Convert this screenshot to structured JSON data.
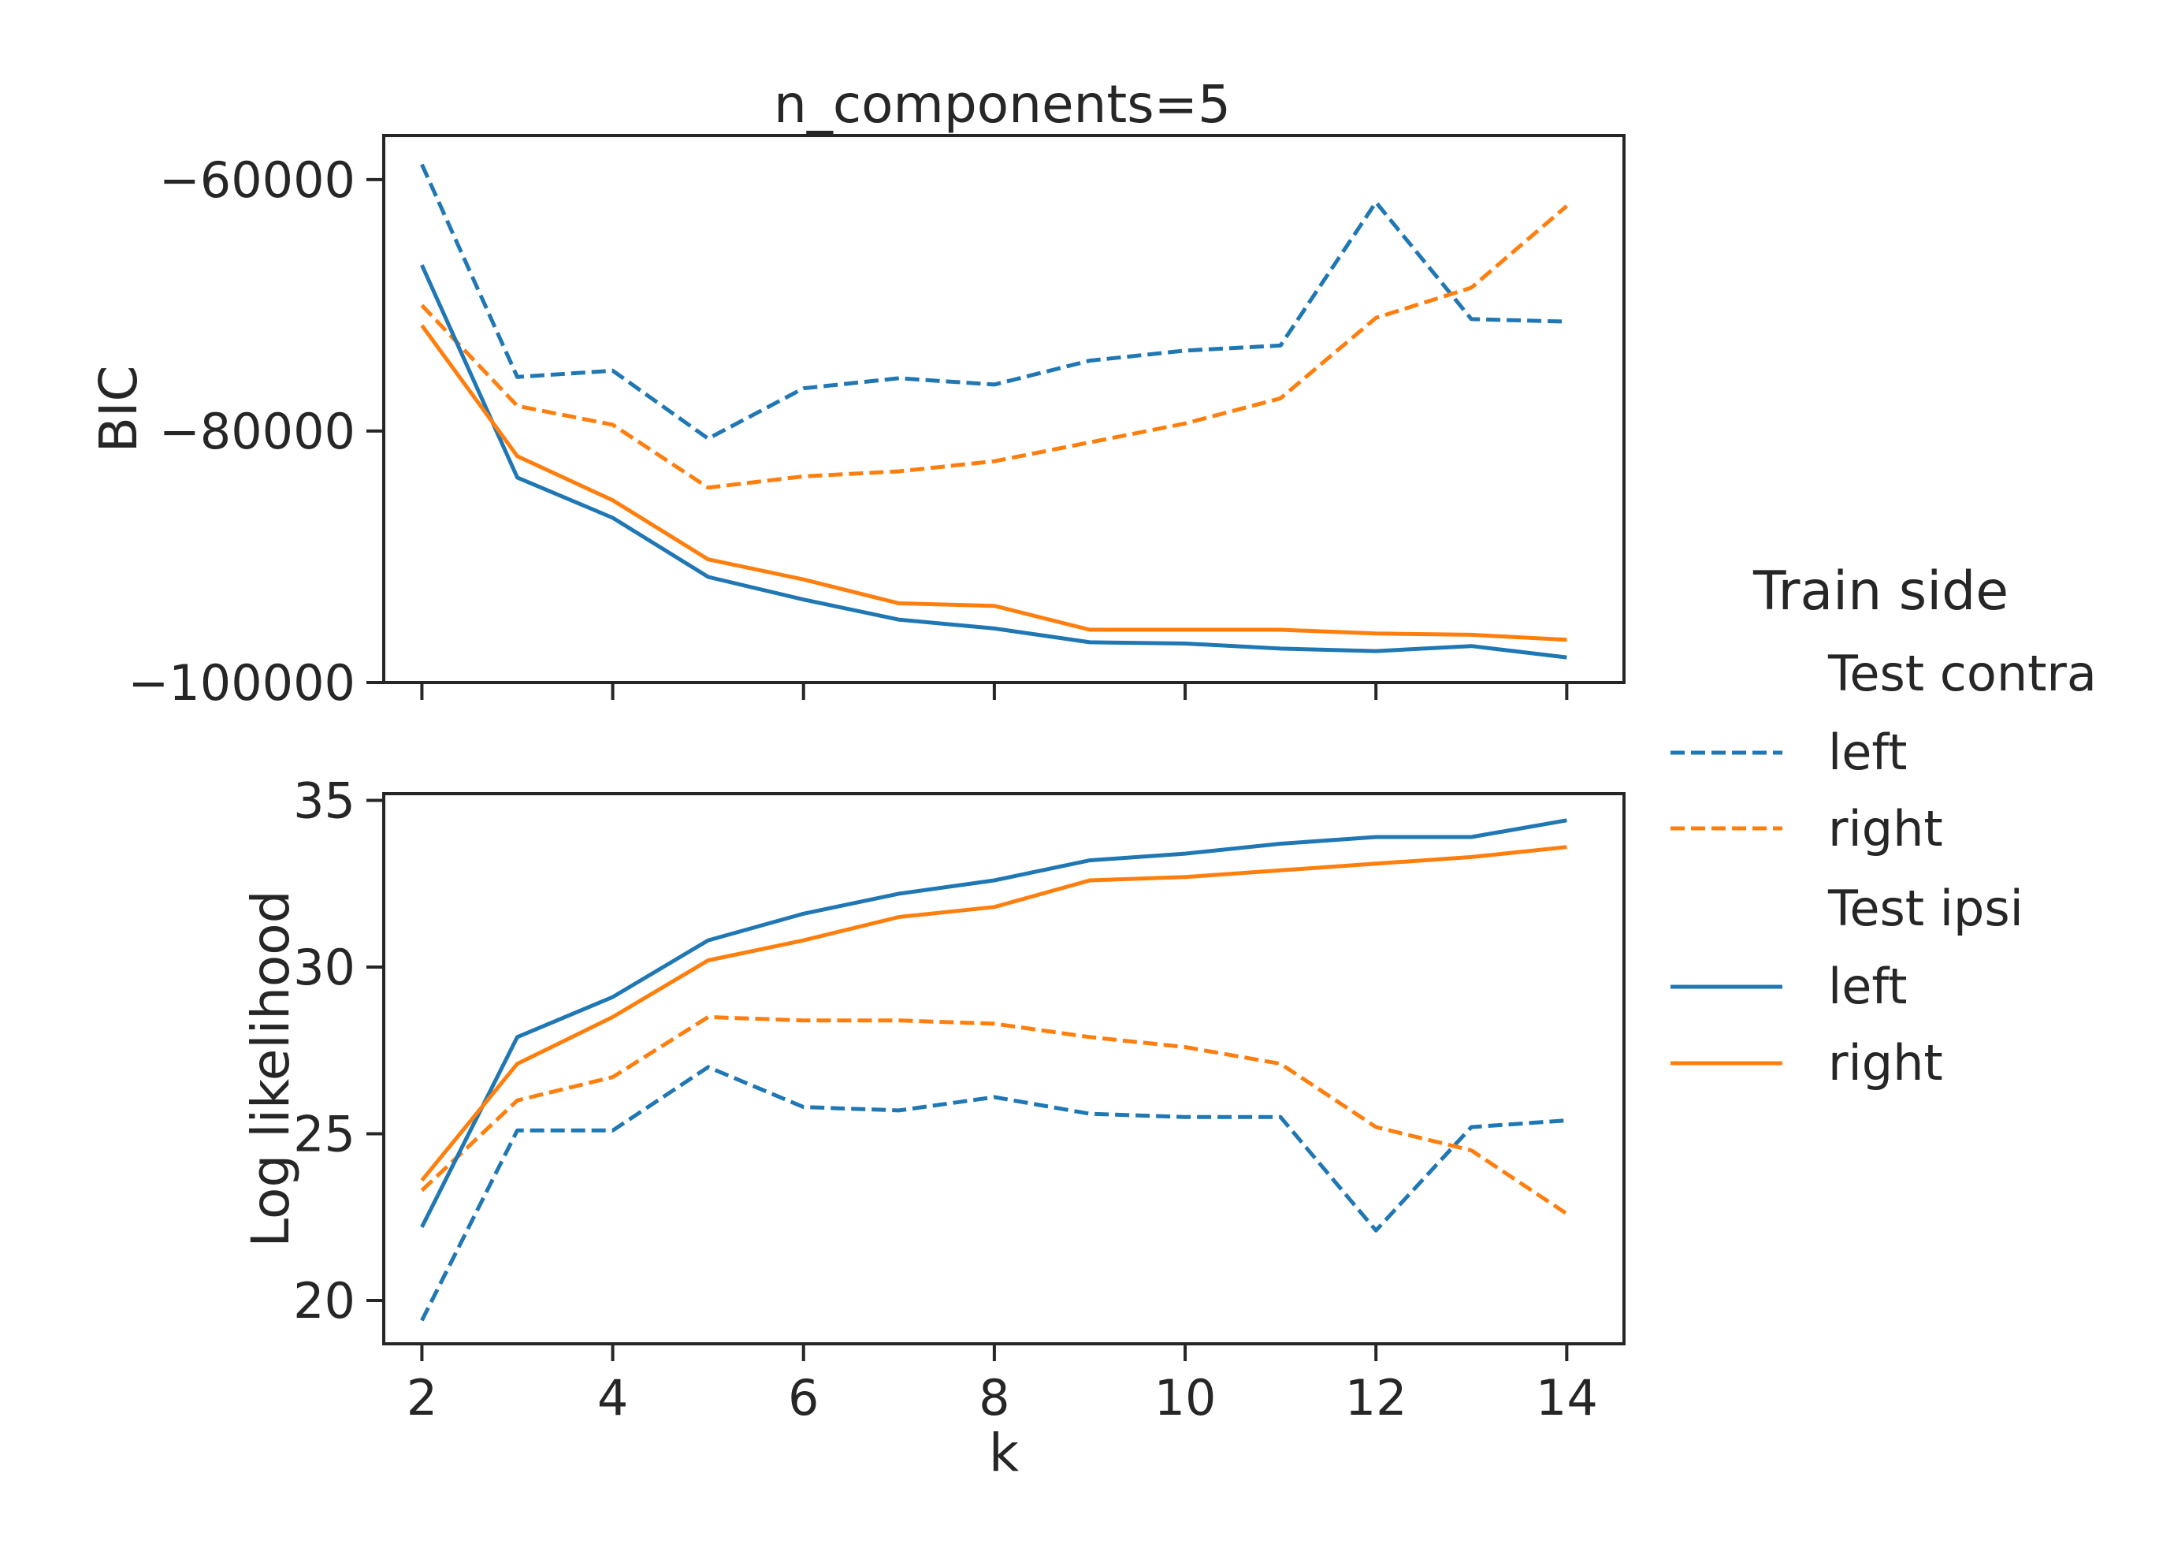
{
  "chart_data": {
    "type": "line",
    "title": "n_components=5",
    "xlabel": "k",
    "x": [
      2,
      3,
      4,
      5,
      6,
      7,
      8,
      9,
      10,
      11,
      12,
      13,
      14
    ],
    "xticks": [
      "2",
      "4",
      "6",
      "8",
      "10",
      "12",
      "14"
    ],
    "xlim": [
      1.6,
      14.6
    ],
    "colors": {
      "left": "#1f77b4",
      "right": "#ff7f0e"
    },
    "legend": {
      "title": "Train side",
      "placement": "right",
      "groups": [
        {
          "label": "Test contra",
          "style": "dashed",
          "entries": [
            "left",
            "right"
          ]
        },
        {
          "label": "Test ipsi",
          "style": "solid",
          "entries": [
            "left",
            "right"
          ]
        }
      ]
    },
    "panels": [
      {
        "ylabel": "BIC",
        "ylim": [
          -100000,
          -56500
        ],
        "yticks": [
          "−60000",
          "−80000",
          "−100000"
        ],
        "ytick_values": [
          -60000,
          -80000,
          -100000
        ],
        "series": [
          {
            "group": "Test contra",
            "side": "left",
            "style": "dashed",
            "color": "#1f77b4",
            "values": [
              -58800,
              -75700,
              -75200,
              -80600,
              -76600,
              -75800,
              -76300,
              -74400,
              -73600,
              -73200,
              -61800,
              -71100,
              -71300
            ]
          },
          {
            "group": "Test contra",
            "side": "right",
            "style": "dashed",
            "color": "#ff7f0e",
            "values": [
              -70000,
              -78000,
              -79500,
              -84500,
              -83600,
              -83200,
              -82400,
              -80900,
              -79400,
              -77400,
              -71000,
              -68600,
              -62100
            ]
          },
          {
            "group": "Test ipsi",
            "side": "left",
            "style": "solid",
            "color": "#1f77b4",
            "values": [
              -66800,
              -83700,
              -86900,
              -91600,
              -93400,
              -95000,
              -95700,
              -96800,
              -96900,
              -97300,
              -97500,
              -97100,
              -98000
            ]
          },
          {
            "group": "Test ipsi",
            "side": "right",
            "style": "solid",
            "color": "#ff7f0e",
            "values": [
              -71600,
              -82000,
              -85500,
              -90200,
              -91800,
              -93700,
              -93900,
              -95800,
              -95800,
              -95800,
              -96100,
              -96200,
              -96600
            ]
          }
        ]
      },
      {
        "ylabel": "Log likelihood",
        "ylim": [
          18.7,
          35.2
        ],
        "yticks": [
          "20",
          "25",
          "30",
          "35"
        ],
        "ytick_values": [
          20,
          25,
          30,
          35
        ],
        "series": [
          {
            "group": "Test contra",
            "side": "left",
            "style": "dashed",
            "color": "#1f77b4",
            "values": [
              19.4,
              25.1,
              25.1,
              27.0,
              25.8,
              25.7,
              26.1,
              25.6,
              25.5,
              25.5,
              22.1,
              25.2,
              25.4
            ]
          },
          {
            "group": "Test contra",
            "side": "right",
            "style": "dashed",
            "color": "#ff7f0e",
            "values": [
              23.3,
              26.0,
              26.7,
              28.5,
              28.4,
              28.4,
              28.3,
              27.9,
              27.6,
              27.1,
              25.2,
              24.5,
              22.6
            ]
          },
          {
            "group": "Test ipsi",
            "side": "left",
            "style": "solid",
            "color": "#1f77b4",
            "values": [
              22.2,
              27.9,
              29.1,
              30.8,
              31.6,
              32.2,
              32.6,
              33.2,
              33.4,
              33.7,
              33.9,
              33.9,
              34.4
            ]
          },
          {
            "group": "Test ipsi",
            "side": "right",
            "style": "solid",
            "color": "#ff7f0e",
            "values": [
              23.6,
              27.1,
              28.5,
              30.2,
              30.8,
              31.5,
              31.8,
              32.6,
              32.7,
              32.9,
              33.1,
              33.3,
              33.6
            ]
          }
        ]
      }
    ]
  }
}
